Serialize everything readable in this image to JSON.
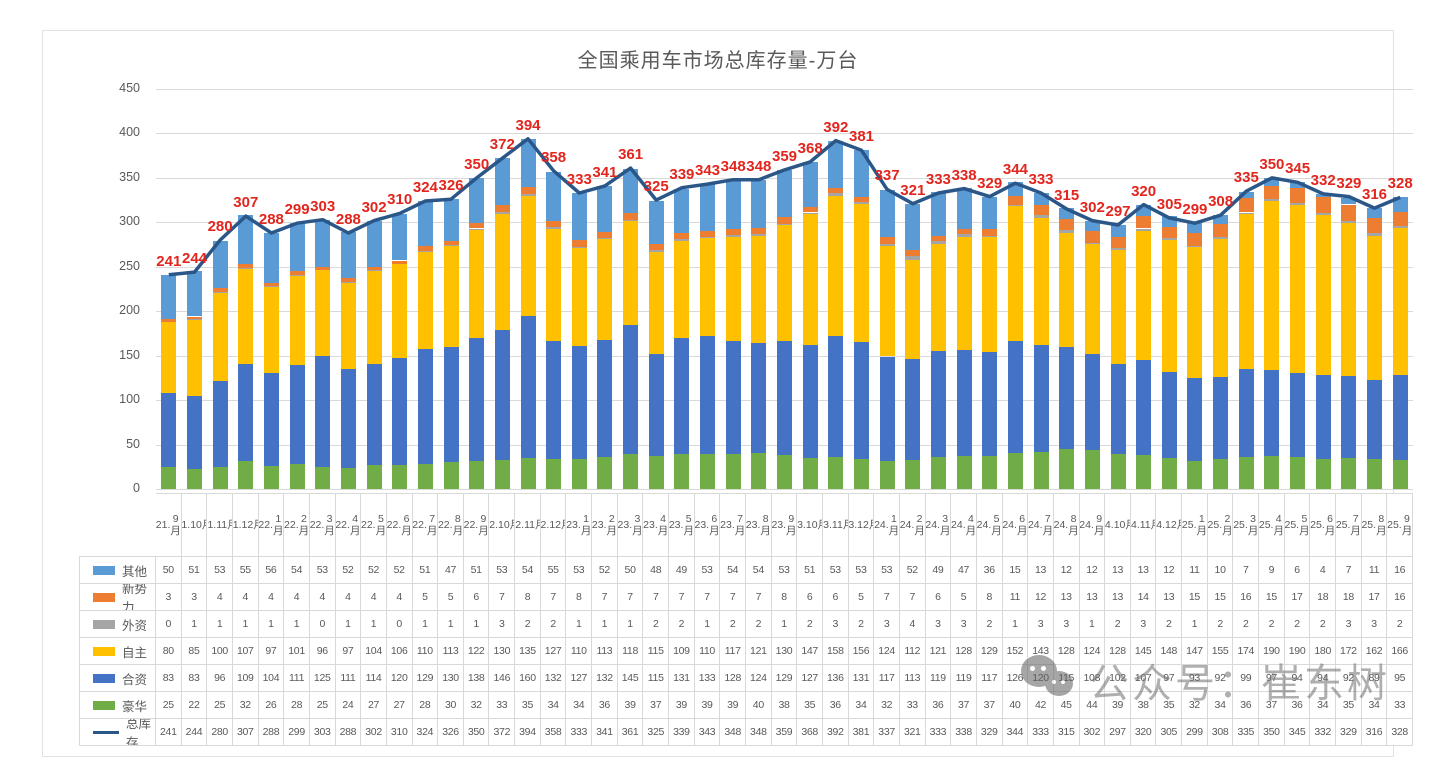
{
  "watermark": {
    "text": "公众号：崔东树"
  },
  "chart_data": {
    "type": "bar",
    "subtype": "stacked-bar-with-line",
    "title": "全国乘用车市场总库存量-万台",
    "ylim": [
      0,
      450
    ],
    "ytick_step": 50,
    "grid": true,
    "legend_position": "table-left",
    "label_color": "#e2251d",
    "categories": [
      "21.9月",
      "21.10月",
      "21.11月",
      "21.12月",
      "22.1月",
      "22.2月",
      "22.3月",
      "22.4月",
      "22.5月",
      "22.6月",
      "22.7月",
      "22.8月",
      "22.9月",
      "22.10月",
      "22.11月",
      "22.12月",
      "23.1月",
      "23.2月",
      "23.3月",
      "23.4月",
      "23.5月",
      "23.6月",
      "23.7月",
      "23.8月",
      "23.9月",
      "23.10月",
      "23.11月",
      "23.12月",
      "24.1月",
      "24.2月",
      "24.3月",
      "24.4月",
      "24.5月",
      "24.6月",
      "24.7月",
      "24.8月",
      "24.9月",
      "24.10月",
      "24.11月",
      "24.12月",
      "25.1月",
      "25.2月",
      "25.3月",
      "25.4月",
      "25.5月",
      "25.6月",
      "25.7月",
      "25.8月",
      "25.9月"
    ],
    "series": [
      {
        "name": "豪华",
        "color": "#70AD47",
        "values": [
          25,
          22,
          25,
          32,
          26,
          28,
          25,
          24,
          27,
          27,
          28,
          30,
          32,
          33,
          35,
          34,
          34,
          36,
          39,
          37,
          39,
          39,
          39,
          40,
          38,
          35,
          36,
          34,
          32,
          33,
          36,
          37,
          37,
          40,
          42,
          45,
          44,
          39,
          38,
          35,
          32,
          34,
          36,
          37,
          36,
          34,
          35,
          34,
          33
        ]
      },
      {
        "name": "合资",
        "color": "#4472C4",
        "values": [
          83,
          83,
          96,
          109,
          104,
          111,
          125,
          111,
          114,
          120,
          129,
          130,
          138,
          146,
          160,
          132,
          127,
          132,
          145,
          115,
          131,
          133,
          128,
          124,
          129,
          127,
          136,
          131,
          117,
          113,
          119,
          119,
          117,
          126,
          120,
          115,
          108,
          102,
          107,
          97,
          93,
          92,
          99,
          97,
          94,
          94,
          92,
          89,
          95
        ]
      },
      {
        "name": "自主",
        "color": "#FFC000",
        "values": [
          80,
          85,
          100,
          107,
          97,
          101,
          96,
          97,
          104,
          106,
          110,
          113,
          122,
          130,
          135,
          127,
          110,
          113,
          118,
          115,
          109,
          110,
          117,
          121,
          130,
          147,
          158,
          156,
          124,
          112,
          121,
          128,
          129,
          152,
          143,
          128,
          124,
          128,
          145,
          148,
          147,
          155,
          174,
          190,
          190,
          180,
          172,
          162,
          166
        ]
      },
      {
        "name": "外资",
        "color": "#A5A5A5",
        "values": [
          0,
          1,
          1,
          1,
          1,
          1,
          0,
          1,
          1,
          0,
          1,
          1,
          1,
          3,
          2,
          2,
          1,
          1,
          1,
          2,
          2,
          1,
          2,
          2,
          1,
          2,
          3,
          2,
          3,
          4,
          3,
          3,
          2,
          1,
          3,
          3,
          1,
          2,
          3,
          2,
          1,
          2,
          2,
          2,
          2,
          2,
          3,
          3,
          2
        ]
      },
      {
        "name": "新势力",
        "color": "#ED7D31",
        "values": [
          3,
          3,
          4,
          4,
          4,
          4,
          4,
          4,
          4,
          4,
          5,
          5,
          6,
          7,
          8,
          7,
          8,
          7,
          7,
          7,
          7,
          7,
          7,
          7,
          8,
          6,
          6,
          5,
          7,
          7,
          6,
          5,
          8,
          11,
          12,
          13,
          13,
          13,
          14,
          13,
          15,
          15,
          16,
          15,
          17,
          18,
          18,
          17,
          16
        ]
      },
      {
        "name": "其他",
        "color": "#5B9BD5",
        "values": [
          50,
          51,
          53,
          55,
          56,
          54,
          53,
          52,
          52,
          52,
          51,
          47,
          51,
          53,
          54,
          55,
          53,
          52,
          50,
          48,
          49,
          53,
          54,
          54,
          53,
          51,
          53,
          53,
          53,
          52,
          49,
          47,
          36,
          15,
          13,
          12,
          12,
          13,
          13,
          12,
          11,
          10,
          7,
          9,
          6,
          4,
          7,
          11,
          16
        ]
      }
    ],
    "line_series": {
      "name": "总库存",
      "color": "#2b5688",
      "values": [
        241,
        244,
        280,
        307,
        288,
        299,
        303,
        288,
        302,
        310,
        324,
        326,
        350,
        372,
        394,
        358,
        333,
        341,
        361,
        325,
        339,
        343,
        348,
        348,
        359,
        368,
        392,
        381,
        337,
        321,
        333,
        338,
        329,
        344,
        333,
        315,
        302,
        297,
        320,
        305,
        299,
        308,
        335,
        350,
        345,
        332,
        329,
        316,
        328
      ]
    },
    "table_row_order": [
      "其他",
      "新势力",
      "外资",
      "自主",
      "合资",
      "豪华",
      "总库存"
    ]
  }
}
